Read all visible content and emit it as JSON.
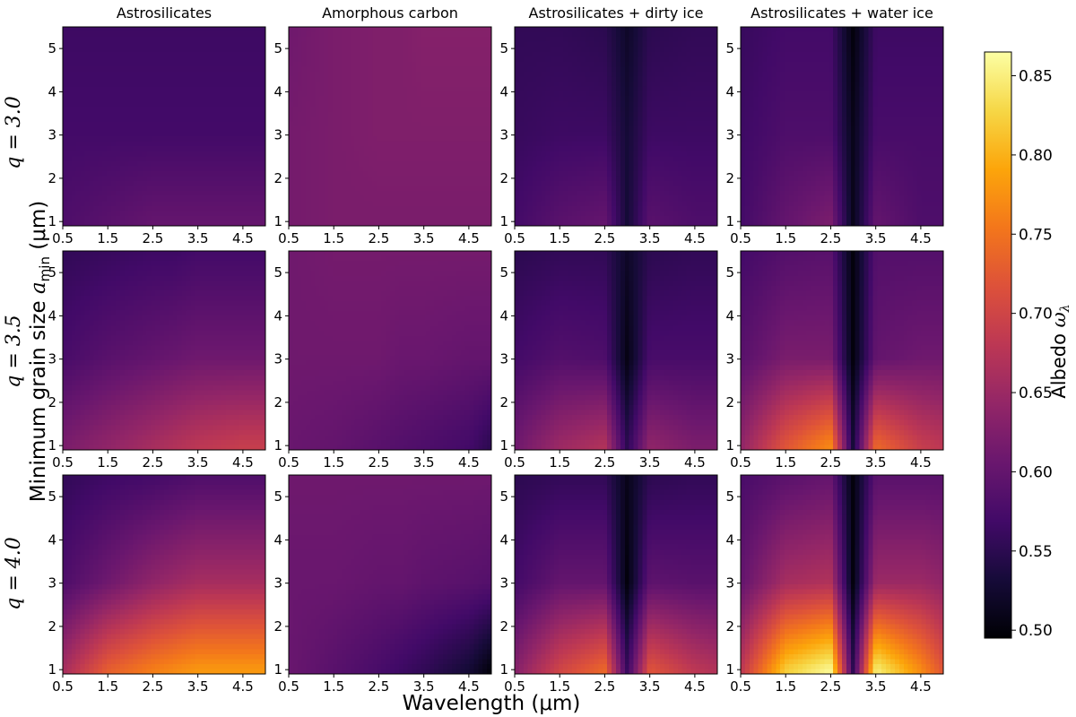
{
  "chart_data": {
    "type": "heatmap",
    "column_titles": [
      "Astrosilicates",
      "Amorphous carbon",
      "Astrosilicates + dirty ice",
      "Astrosilicates + water ice"
    ],
    "row_labels": [
      "q = 3.0",
      "q = 3.5",
      "q = 4.0"
    ],
    "row_q_values": [
      3.0,
      3.5,
      4.0
    ],
    "xlabel": "Wavelength (μm)",
    "ylabel": "Minimum grain size a_min (μm)",
    "ylabel_text": "Minimum grain size ",
    "ylabel_var": "a",
    "ylabel_sub": "min",
    "ylabel_unit": " (μm)",
    "xlim": [
      0.5,
      5.0
    ],
    "ylim": [
      0.9,
      5.5
    ],
    "x_ticks": [
      0.5,
      1.5,
      2.5,
      3.5,
      4.5
    ],
    "x_tick_labels": [
      "0.5",
      "1.5",
      "2.5",
      "3.5",
      "4.5"
    ],
    "y_ticks": [
      1,
      2,
      3,
      4,
      5
    ],
    "y_tick_labels": [
      "1",
      "2",
      "3",
      "4",
      "5"
    ],
    "colorbar": {
      "label": "Albedo ω_λ",
      "label_text": "Albedo ",
      "label_var": "ω",
      "label_sub": "λ",
      "colormap": "inferno",
      "range": [
        0.495,
        0.865
      ],
      "ticks": [
        0.5,
        0.55,
        0.6,
        0.65,
        0.7,
        0.75,
        0.8,
        0.85
      ],
      "tick_labels": [
        "0.50",
        "0.55",
        "0.60",
        "0.65",
        "0.70",
        "0.75",
        "0.80",
        "0.85"
      ]
    },
    "model_grid": {
      "wavelength_nodes": [
        0.5,
        1.5,
        2.5,
        3.0,
        3.5,
        4.5,
        5.0
      ],
      "amin_nodes": [
        1,
        3,
        5.5
      ],
      "panels": [
        {
          "row": 0,
          "col": 0,
          "albedo": [
            [
              0.58,
              0.59,
              0.6,
              0.6,
              0.6,
              0.6,
              0.6
            ],
            [
              0.57,
              0.57,
              0.57,
              0.57,
              0.57,
              0.57,
              0.57
            ],
            [
              0.565,
              0.565,
              0.565,
              0.565,
              0.565,
              0.565,
              0.565
            ]
          ]
        },
        {
          "row": 0,
          "col": 1,
          "albedo": [
            [
              0.615,
              0.62,
              0.62,
              0.62,
              0.62,
              0.62,
              0.62
            ],
            [
              0.615,
              0.62,
              0.625,
              0.625,
              0.625,
              0.625,
              0.625
            ],
            [
              0.61,
              0.62,
              0.625,
              0.625,
              0.63,
              0.63,
              0.63
            ]
          ]
        },
        {
          "row": 0,
          "col": 2,
          "albedo": [
            [
              0.57,
              0.59,
              0.6,
              0.53,
              0.59,
              0.58,
              0.58
            ],
            [
              0.56,
              0.565,
              0.565,
              0.53,
              0.565,
              0.565,
              0.565
            ],
            [
              0.555,
              0.555,
              0.55,
              0.52,
              0.55,
              0.555,
              0.555
            ]
          ]
        },
        {
          "row": 0,
          "col": 3,
          "albedo": [
            [
              0.57,
              0.6,
              0.62,
              0.51,
              0.6,
              0.58,
              0.58
            ],
            [
              0.565,
              0.58,
              0.58,
              0.51,
              0.575,
              0.575,
              0.575
            ],
            [
              0.56,
              0.57,
              0.57,
              0.5,
              0.565,
              0.565,
              0.565
            ]
          ]
        },
        {
          "row": 1,
          "col": 0,
          "albedo": [
            [
              0.62,
              0.64,
              0.66,
              0.67,
              0.68,
              0.69,
              0.69
            ],
            [
              0.575,
              0.59,
              0.6,
              0.605,
              0.61,
              0.61,
              0.61
            ],
            [
              0.555,
              0.56,
              0.565,
              0.565,
              0.57,
              0.57,
              0.57
            ]
          ]
        },
        {
          "row": 1,
          "col": 1,
          "albedo": [
            [
              0.605,
              0.6,
              0.59,
              0.585,
              0.58,
              0.57,
              0.55
            ],
            [
              0.61,
              0.61,
              0.61,
              0.605,
              0.605,
              0.6,
              0.6
            ],
            [
              0.61,
              0.615,
              0.615,
              0.615,
              0.615,
              0.615,
              0.615
            ]
          ]
        },
        {
          "row": 1,
          "col": 2,
          "albedo": [
            [
              0.61,
              0.65,
              0.67,
              0.55,
              0.64,
              0.62,
              0.62
            ],
            [
              0.57,
              0.585,
              0.58,
              0.505,
              0.575,
              0.575,
              0.575
            ],
            [
              0.55,
              0.555,
              0.555,
              0.52,
              0.55,
              0.555,
              0.555
            ]
          ]
        },
        {
          "row": 1,
          "col": 3,
          "albedo": [
            [
              0.64,
              0.72,
              0.77,
              0.53,
              0.74,
              0.69,
              0.68
            ],
            [
              0.59,
              0.62,
              0.62,
              0.5,
              0.6,
              0.61,
              0.61
            ],
            [
              0.57,
              0.585,
              0.59,
              0.5,
              0.585,
              0.585,
              0.585
            ]
          ]
        },
        {
          "row": 2,
          "col": 0,
          "albedo": [
            [
              0.66,
              0.73,
              0.76,
              0.77,
              0.78,
              0.78,
              0.78
            ],
            [
              0.58,
              0.61,
              0.64,
              0.65,
              0.66,
              0.66,
              0.66
            ],
            [
              0.555,
              0.565,
              0.57,
              0.575,
              0.58,
              0.58,
              0.58
            ]
          ]
        },
        {
          "row": 2,
          "col": 1,
          "albedo": [
            [
              0.605,
              0.59,
              0.575,
              0.565,
              0.555,
              0.53,
              0.5
            ],
            [
              0.605,
              0.605,
              0.6,
              0.6,
              0.595,
              0.59,
              0.585
            ],
            [
              0.61,
              0.61,
              0.61,
              0.61,
              0.61,
              0.61,
              0.61
            ]
          ]
        },
        {
          "row": 2,
          "col": 2,
          "albedo": [
            [
              0.63,
              0.7,
              0.74,
              0.56,
              0.72,
              0.68,
              0.67
            ],
            [
              0.57,
              0.6,
              0.6,
              0.5,
              0.595,
              0.59,
              0.59
            ],
            [
              0.55,
              0.555,
              0.555,
              0.51,
              0.55,
              0.555,
              0.555
            ]
          ]
        },
        {
          "row": 2,
          "col": 3,
          "albedo": [
            [
              0.68,
              0.82,
              0.86,
              0.55,
              0.85,
              0.77,
              0.72
            ],
            [
              0.6,
              0.66,
              0.67,
              0.5,
              0.65,
              0.65,
              0.64
            ],
            [
              0.575,
              0.59,
              0.6,
              0.5,
              0.59,
              0.59,
              0.59
            ]
          ]
        }
      ]
    }
  }
}
